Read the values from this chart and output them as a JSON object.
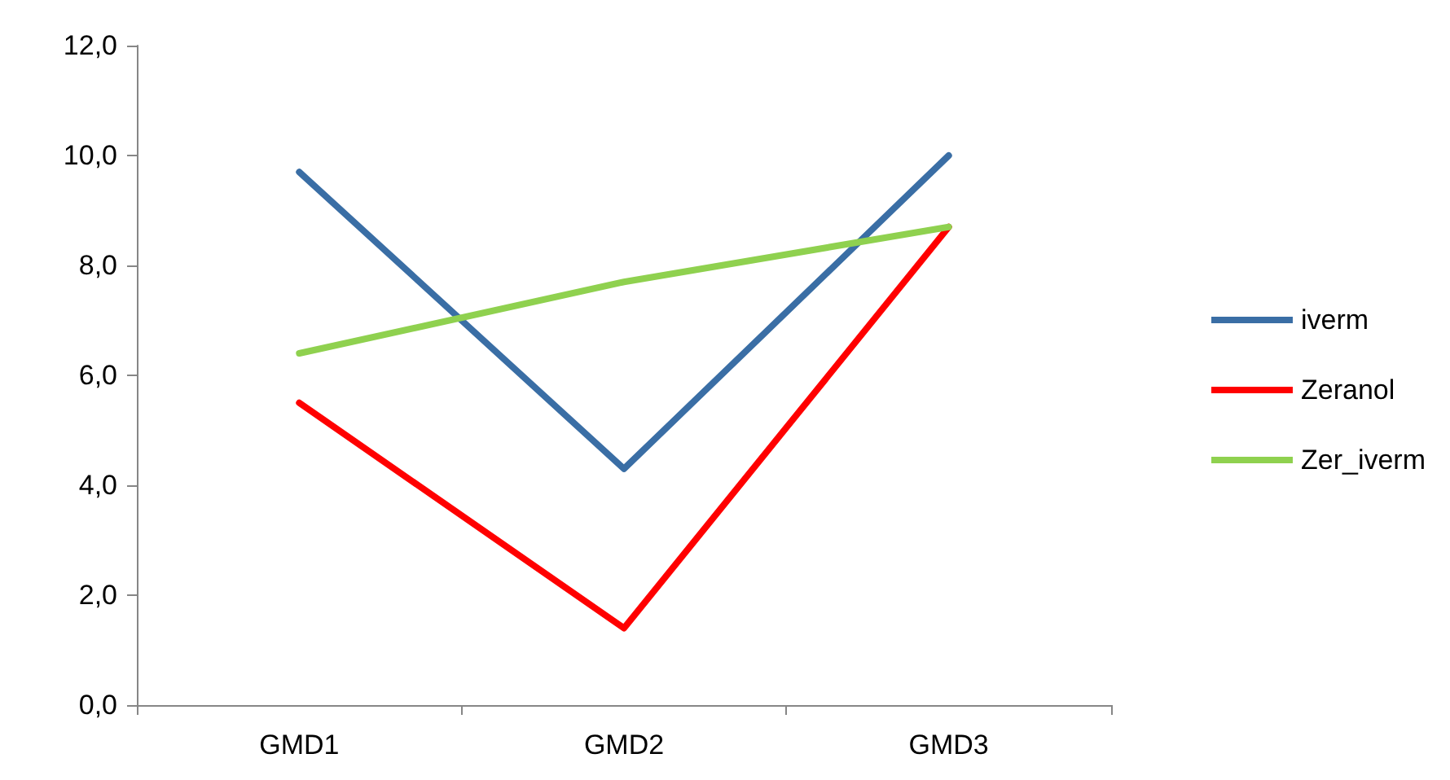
{
  "chart_data": {
    "type": "line",
    "categories": [
      "GMD1",
      "GMD2",
      "GMD3"
    ],
    "series": [
      {
        "name": "iverm",
        "color": "#3a6ea5",
        "values": [
          9.7,
          4.3,
          10.0
        ]
      },
      {
        "name": "Zeranol",
        "color": "#ff0000",
        "values": [
          5.5,
          1.4,
          8.7
        ]
      },
      {
        "name": "Zer_iverm",
        "color": "#8fd14f",
        "values": [
          6.4,
          7.7,
          8.7
        ]
      }
    ],
    "ylim": [
      0,
      12
    ],
    "yticks": [
      {
        "value": 0,
        "label": "0,0"
      },
      {
        "value": 2,
        "label": "2,0"
      },
      {
        "value": 4,
        "label": "4,0"
      },
      {
        "value": 6,
        "label": "6,0"
      },
      {
        "value": 8,
        "label": "8,0"
      },
      {
        "value": 10,
        "label": "10,0"
      },
      {
        "value": 12,
        "label": "12,0"
      }
    ],
    "grid": false,
    "legend": "right",
    "marker": "none",
    "line_style": "solid"
  }
}
